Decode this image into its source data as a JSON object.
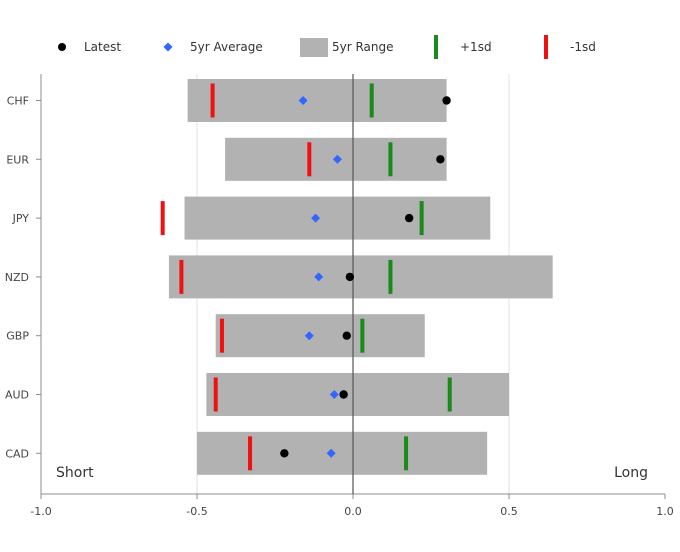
{
  "chart_data": {
    "type": "range-dot",
    "categories": [
      "CHF",
      "EUR",
      "JPY",
      "NZD",
      "GBP",
      "AUD",
      "CAD"
    ],
    "xlim": [
      -1.0,
      1.0
    ],
    "x_ticks": [
      -1.0,
      -0.5,
      0.0,
      0.5,
      1.0
    ],
    "x_tick_labels": [
      "-1.0",
      "-0.5",
      "0.0",
      "0.5",
      "1.0"
    ],
    "grid": true,
    "legend_position": "top",
    "annotations": {
      "left": "Short",
      "right": "Long"
    },
    "series": [
      {
        "name": "Latest",
        "marker": "circle",
        "color": "#000000",
        "values": [
          0.3,
          0.28,
          0.18,
          -0.01,
          -0.02,
          -0.03,
          -0.22
        ]
      },
      {
        "name": "5yr Average",
        "marker": "diamond",
        "color": "#3366ff",
        "values": [
          -0.16,
          -0.05,
          -0.12,
          -0.11,
          -0.14,
          -0.06,
          -0.07
        ]
      },
      {
        "name": "5yr Range",
        "marker": "bar",
        "color": "#b2b2b2",
        "ranges": [
          [
            -0.53,
            0.3
          ],
          [
            -0.41,
            0.3
          ],
          [
            -0.54,
            0.44
          ],
          [
            -0.59,
            0.64
          ],
          [
            -0.44,
            0.23
          ],
          [
            -0.47,
            0.5
          ],
          [
            -0.5,
            0.43
          ]
        ]
      },
      {
        "name": "+1sd",
        "marker": "tick",
        "color": "#1a8a1a",
        "values": [
          0.06,
          0.12,
          0.22,
          0.12,
          0.03,
          0.31,
          0.17
        ]
      },
      {
        "name": "-1sd",
        "marker": "tick",
        "color": "#ee1111",
        "values": [
          -0.45,
          -0.14,
          -0.61,
          -0.55,
          -0.42,
          -0.44,
          -0.33
        ]
      }
    ]
  }
}
